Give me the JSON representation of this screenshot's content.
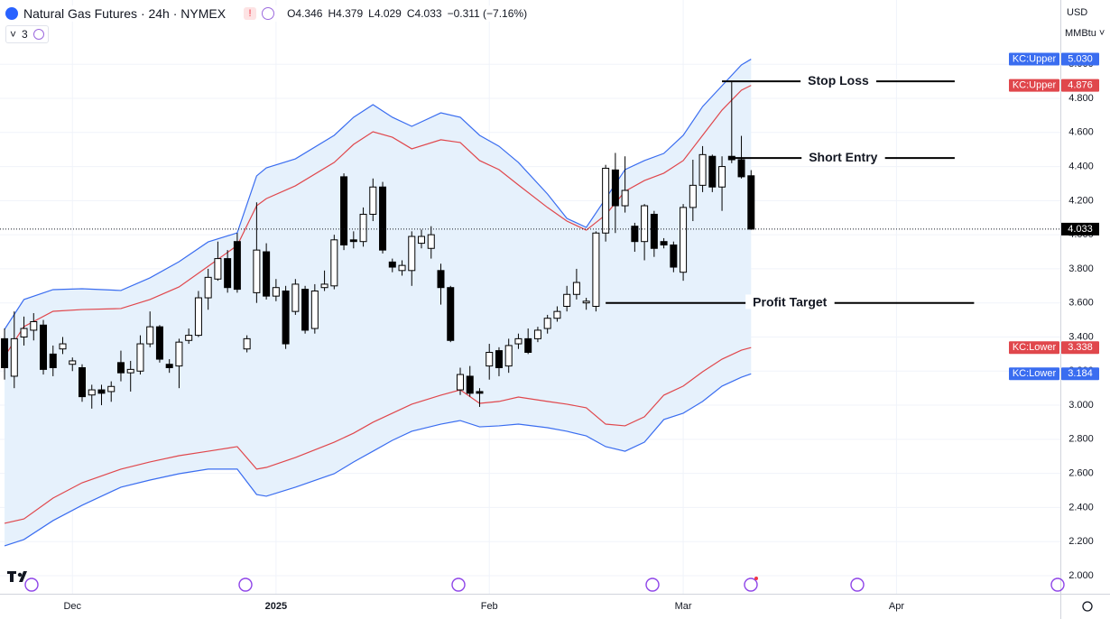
{
  "header": {
    "symbol": "Natural Gas Futures · 24h · NYMEX",
    "ohlc": [
      "O4.346",
      "H4.379",
      "L4.029",
      "C4.033"
    ],
    "change": "−0.311 (−7.16%)",
    "indicators_count": "3",
    "currency": "USD",
    "unit": "MMBtu"
  },
  "chart_data": {
    "type": "candlestick",
    "open": [
      3.39,
      3.17,
      3.4,
      3.44,
      3.47,
      3.3,
      3.33,
      3.24,
      3.22,
      3.06,
      3.09,
      3.08,
      3.25,
      3.19,
      3.2,
      3.36,
      3.46,
      3.24,
      3.23,
      3.38,
      3.41,
      3.63,
      3.74,
      3.86,
      3.96,
      3.33,
      3.66,
      3.9,
      3.64,
      3.67,
      3.55,
      3.68,
      3.45,
      3.69,
      3.7,
      4.34,
      3.97,
      3.96,
      4.12,
      4.28,
      3.84,
      3.79,
      3.79,
      3.95,
      3.92,
      3.79,
      3.69,
      3.09,
      3.17,
      3.08,
      3.23,
      3.32,
      3.23,
      3.36,
      3.39,
      3.39,
      3.45,
      3.51,
      3.58,
      3.65,
      3.6,
      3.58,
      4.01,
      4.38,
      4.17,
      4.05,
      3.96,
      4.12,
      3.96,
      3.94,
      3.78,
      4.16,
      4.29,
      4.46,
      4.28,
      4.46,
      4.44,
      4.346
    ],
    "high": [
      3.45,
      3.55,
      3.52,
      3.54,
      3.5,
      3.35,
      3.4,
      3.28,
      3.24,
      3.12,
      3.12,
      3.14,
      3.32,
      3.26,
      3.41,
      3.55,
      3.47,
      3.27,
      3.39,
      3.45,
      3.67,
      3.8,
      3.96,
      3.91,
      4.01,
      3.41,
      4.19,
      3.95,
      3.74,
      3.7,
      3.74,
      3.7,
      3.71,
      3.79,
      4.0,
      4.36,
      4.02,
      4.16,
      4.33,
      4.31,
      3.86,
      3.85,
      4.02,
      4.03,
      4.05,
      3.83,
      3.7,
      3.22,
      3.23,
      3.1,
      3.36,
      3.34,
      3.39,
      3.42,
      3.45,
      3.46,
      3.53,
      3.58,
      3.7,
      3.8,
      3.63,
      4.02,
      4.41,
      4.48,
      4.46,
      4.07,
      4.18,
      4.14,
      3.98,
      3.96,
      4.18,
      4.44,
      4.52,
      4.47,
      4.46,
      4.9,
      4.58,
      4.379
    ],
    "low": [
      3.15,
      3.1,
      3.35,
      3.38,
      3.18,
      3.17,
      3.3,
      3.2,
      3.02,
      2.98,
      3.0,
      3.02,
      3.14,
      3.08,
      3.18,
      3.34,
      3.25,
      3.19,
      3.1,
      3.36,
      3.4,
      3.56,
      3.73,
      3.66,
      3.66,
      3.31,
      3.6,
      3.62,
      3.61,
      3.33,
      3.53,
      3.42,
      3.42,
      3.67,
      3.68,
      3.91,
      3.92,
      3.93,
      4.08,
      3.89,
      3.78,
      3.76,
      3.7,
      3.92,
      3.86,
      3.59,
      3.37,
      3.06,
      3.05,
      2.99,
      3.15,
      3.17,
      3.19,
      3.33,
      3.3,
      3.37,
      3.42,
      3.49,
      3.55,
      3.62,
      3.56,
      3.55,
      3.96,
      4.01,
      4.13,
      3.9,
      3.85,
      3.87,
      3.92,
      3.78,
      3.73,
      4.08,
      4.25,
      4.25,
      4.14,
      4.42,
      4.33,
      4.029
    ],
    "close": [
      3.22,
      3.39,
      3.45,
      3.49,
      3.21,
      3.22,
      3.36,
      3.26,
      3.05,
      3.09,
      3.07,
      3.11,
      3.19,
      3.21,
      3.36,
      3.46,
      3.27,
      3.22,
      3.37,
      3.41,
      3.63,
      3.75,
      3.86,
      3.69,
      3.68,
      3.39,
      3.91,
      3.64,
      3.69,
      3.36,
      3.71,
      3.44,
      3.67,
      3.71,
      3.97,
      3.94,
      3.96,
      4.12,
      4.28,
      3.91,
      3.81,
      3.82,
      3.99,
      3.99,
      4.0,
      3.69,
      3.38,
      3.18,
      3.07,
      3.07,
      3.31,
      3.22,
      3.35,
      3.39,
      3.31,
      3.44,
      3.51,
      3.55,
      3.65,
      3.72,
      3.61,
      4.01,
      4.39,
      4.17,
      4.26,
      3.96,
      4.17,
      3.92,
      3.94,
      3.81,
      4.16,
      4.29,
      4.47,
      4.28,
      4.4,
      4.44,
      4.34,
      4.033
    ],
    "up_color": "#ffffff",
    "down_color": "#000000",
    "series": [
      {
        "name": "KC:Upper",
        "color": "#3a6df0",
        "x": [
          0,
          2,
          5,
          8,
          12,
          15,
          18,
          21,
          24,
          26,
          27,
          30,
          34,
          36,
          38,
          40,
          42,
          45,
          47,
          49,
          51,
          53,
          56,
          58,
          60,
          62,
          64,
          66,
          68,
          70,
          72,
          74,
          76,
          77
        ],
        "values": [
          3.445,
          3.62,
          3.678,
          3.683,
          3.673,
          3.747,
          3.842,
          3.958,
          4.011,
          4.345,
          4.392,
          4.445,
          4.583,
          4.689,
          4.763,
          4.689,
          4.636,
          4.715,
          4.689,
          4.583,
          4.519,
          4.424,
          4.239,
          4.096,
          4.043,
          4.212,
          4.382,
          4.435,
          4.477,
          4.583,
          4.752,
          4.874,
          4.996,
          5.03
        ],
        "value_labels": [
          null,
          null,
          null,
          null,
          null,
          null,
          null,
          null,
          null,
          null,
          null,
          null,
          null,
          null,
          null,
          null,
          null,
          null,
          null,
          null,
          null,
          null,
          null,
          null,
          null,
          null,
          null,
          null,
          null,
          null,
          null,
          null,
          null,
          "5.030"
        ]
      },
      {
        "name": "KC:Upper",
        "color": "#e0474c",
        "x": [
          0,
          2,
          5,
          8,
          12,
          15,
          18,
          21,
          24,
          26,
          27,
          30,
          34,
          36,
          38,
          40,
          42,
          45,
          47,
          49,
          51,
          53,
          56,
          58,
          60,
          62,
          64,
          66,
          68,
          70,
          72,
          74,
          76,
          77
        ],
        "values": [
          3.286,
          3.461,
          3.551,
          3.561,
          3.567,
          3.62,
          3.694,
          3.815,
          3.937,
          4.17,
          4.212,
          4.287,
          4.424,
          4.53,
          4.604,
          4.572,
          4.504,
          4.557,
          4.541,
          4.435,
          4.382,
          4.292,
          4.16,
          4.08,
          4.027,
          4.117,
          4.255,
          4.318,
          4.361,
          4.435,
          4.583,
          4.731,
          4.848,
          4.876
        ],
        "value_labels": [
          null,
          null,
          null,
          null,
          null,
          null,
          null,
          null,
          null,
          null,
          null,
          null,
          null,
          null,
          null,
          null,
          null,
          null,
          null,
          null,
          null,
          null,
          null,
          null,
          null,
          null,
          null,
          null,
          null,
          null,
          null,
          null,
          null,
          "4.876"
        ]
      },
      {
        "name": "KC:Lower",
        "color": "#e0474c",
        "x": [
          0,
          2,
          5,
          8,
          12,
          15,
          18,
          21,
          24,
          26,
          27,
          30,
          34,
          36,
          38,
          40,
          42,
          45,
          47,
          49,
          51,
          53,
          56,
          58,
          60,
          62,
          64,
          66,
          68,
          70,
          72,
          74,
          76,
          77
        ],
        "values": [
          2.307,
          2.333,
          2.455,
          2.545,
          2.625,
          2.667,
          2.704,
          2.73,
          2.757,
          2.625,
          2.635,
          2.693,
          2.783,
          2.836,
          2.9,
          2.953,
          3.006,
          3.059,
          3.09,
          3.011,
          3.022,
          3.048,
          3.022,
          3.006,
          2.985,
          2.889,
          2.879,
          2.932,
          3.059,
          3.112,
          3.196,
          3.27,
          3.323,
          3.338
        ],
        "value_labels": [
          null,
          null,
          null,
          null,
          null,
          null,
          null,
          null,
          null,
          null,
          null,
          null,
          null,
          null,
          null,
          null,
          null,
          null,
          null,
          null,
          null,
          null,
          null,
          null,
          null,
          null,
          null,
          null,
          null,
          null,
          null,
          null,
          null,
          "3.338"
        ]
      },
      {
        "name": "KC:Lower",
        "color": "#3a6df0",
        "x": [
          0,
          2,
          5,
          8,
          12,
          15,
          18,
          21,
          24,
          26,
          27,
          30,
          34,
          36,
          38,
          40,
          42,
          45,
          47,
          49,
          51,
          53,
          56,
          58,
          60,
          62,
          64,
          66,
          68,
          70,
          72,
          74,
          76,
          77
        ],
        "values": [
          2.175,
          2.212,
          2.323,
          2.413,
          2.519,
          2.561,
          2.598,
          2.625,
          2.625,
          2.476,
          2.466,
          2.519,
          2.598,
          2.667,
          2.73,
          2.794,
          2.847,
          2.889,
          2.91,
          2.873,
          2.879,
          2.889,
          2.868,
          2.847,
          2.82,
          2.757,
          2.73,
          2.783,
          2.916,
          2.953,
          3.022,
          3.112,
          3.164,
          3.184
        ],
        "value_labels": [
          null,
          null,
          null,
          null,
          null,
          null,
          null,
          null,
          null,
          null,
          null,
          null,
          null,
          null,
          null,
          null,
          null,
          null,
          null,
          null,
          null,
          null,
          null,
          null,
          null,
          null,
          null,
          null,
          null,
          null,
          null,
          null,
          null,
          "3.184"
        ]
      }
    ],
    "band_fill": "#e6f1fc",
    "price_line": {
      "value": 4.033,
      "label": "4.033"
    },
    "annotations": [
      {
        "text": "Stop Loss",
        "value": 4.9,
        "x": [
          74,
          98
        ]
      },
      {
        "text": "Short Entry",
        "value": 4.45,
        "x": [
          75,
          98
        ]
      },
      {
        "text": "Profit Target",
        "value": 3.6,
        "x": [
          62,
          100
        ]
      }
    ],
    "xlim": [
      -0.47,
      108.9
    ],
    "xticks": [
      {
        "value": 7,
        "label": "Dec"
      },
      {
        "value": 28,
        "label": "2025"
      },
      {
        "value": 50,
        "label": "Feb"
      },
      {
        "value": 70,
        "label": "Mar"
      },
      {
        "value": 92,
        "label": "Apr"
      }
    ],
    "ylim": [
      1.894,
      5.377
    ],
    "yticks": [
      {
        "value": 2.0,
        "label": "2.000"
      },
      {
        "value": 2.2,
        "label": "2.200"
      },
      {
        "value": 2.4,
        "label": "2.400"
      },
      {
        "value": 2.6,
        "label": "2.600"
      },
      {
        "value": 2.8,
        "label": "2.800"
      },
      {
        "value": 3.0,
        "label": "3.000"
      },
      {
        "value": 3.2,
        "label": "3.200"
      },
      {
        "value": 3.4,
        "label": "3.400"
      },
      {
        "value": 3.6,
        "label": "3.600"
      },
      {
        "value": 3.8,
        "label": "3.800"
      },
      {
        "value": 4.0,
        "label": "4.000"
      },
      {
        "value": 4.2,
        "label": "4.200"
      },
      {
        "value": 4.4,
        "label": "4.400"
      },
      {
        "value": 4.6,
        "label": "4.600"
      },
      {
        "value": 4.8,
        "label": "4.800"
      },
      {
        "value": 5.0,
        "label": "5.000"
      }
    ],
    "grid": true
  }
}
